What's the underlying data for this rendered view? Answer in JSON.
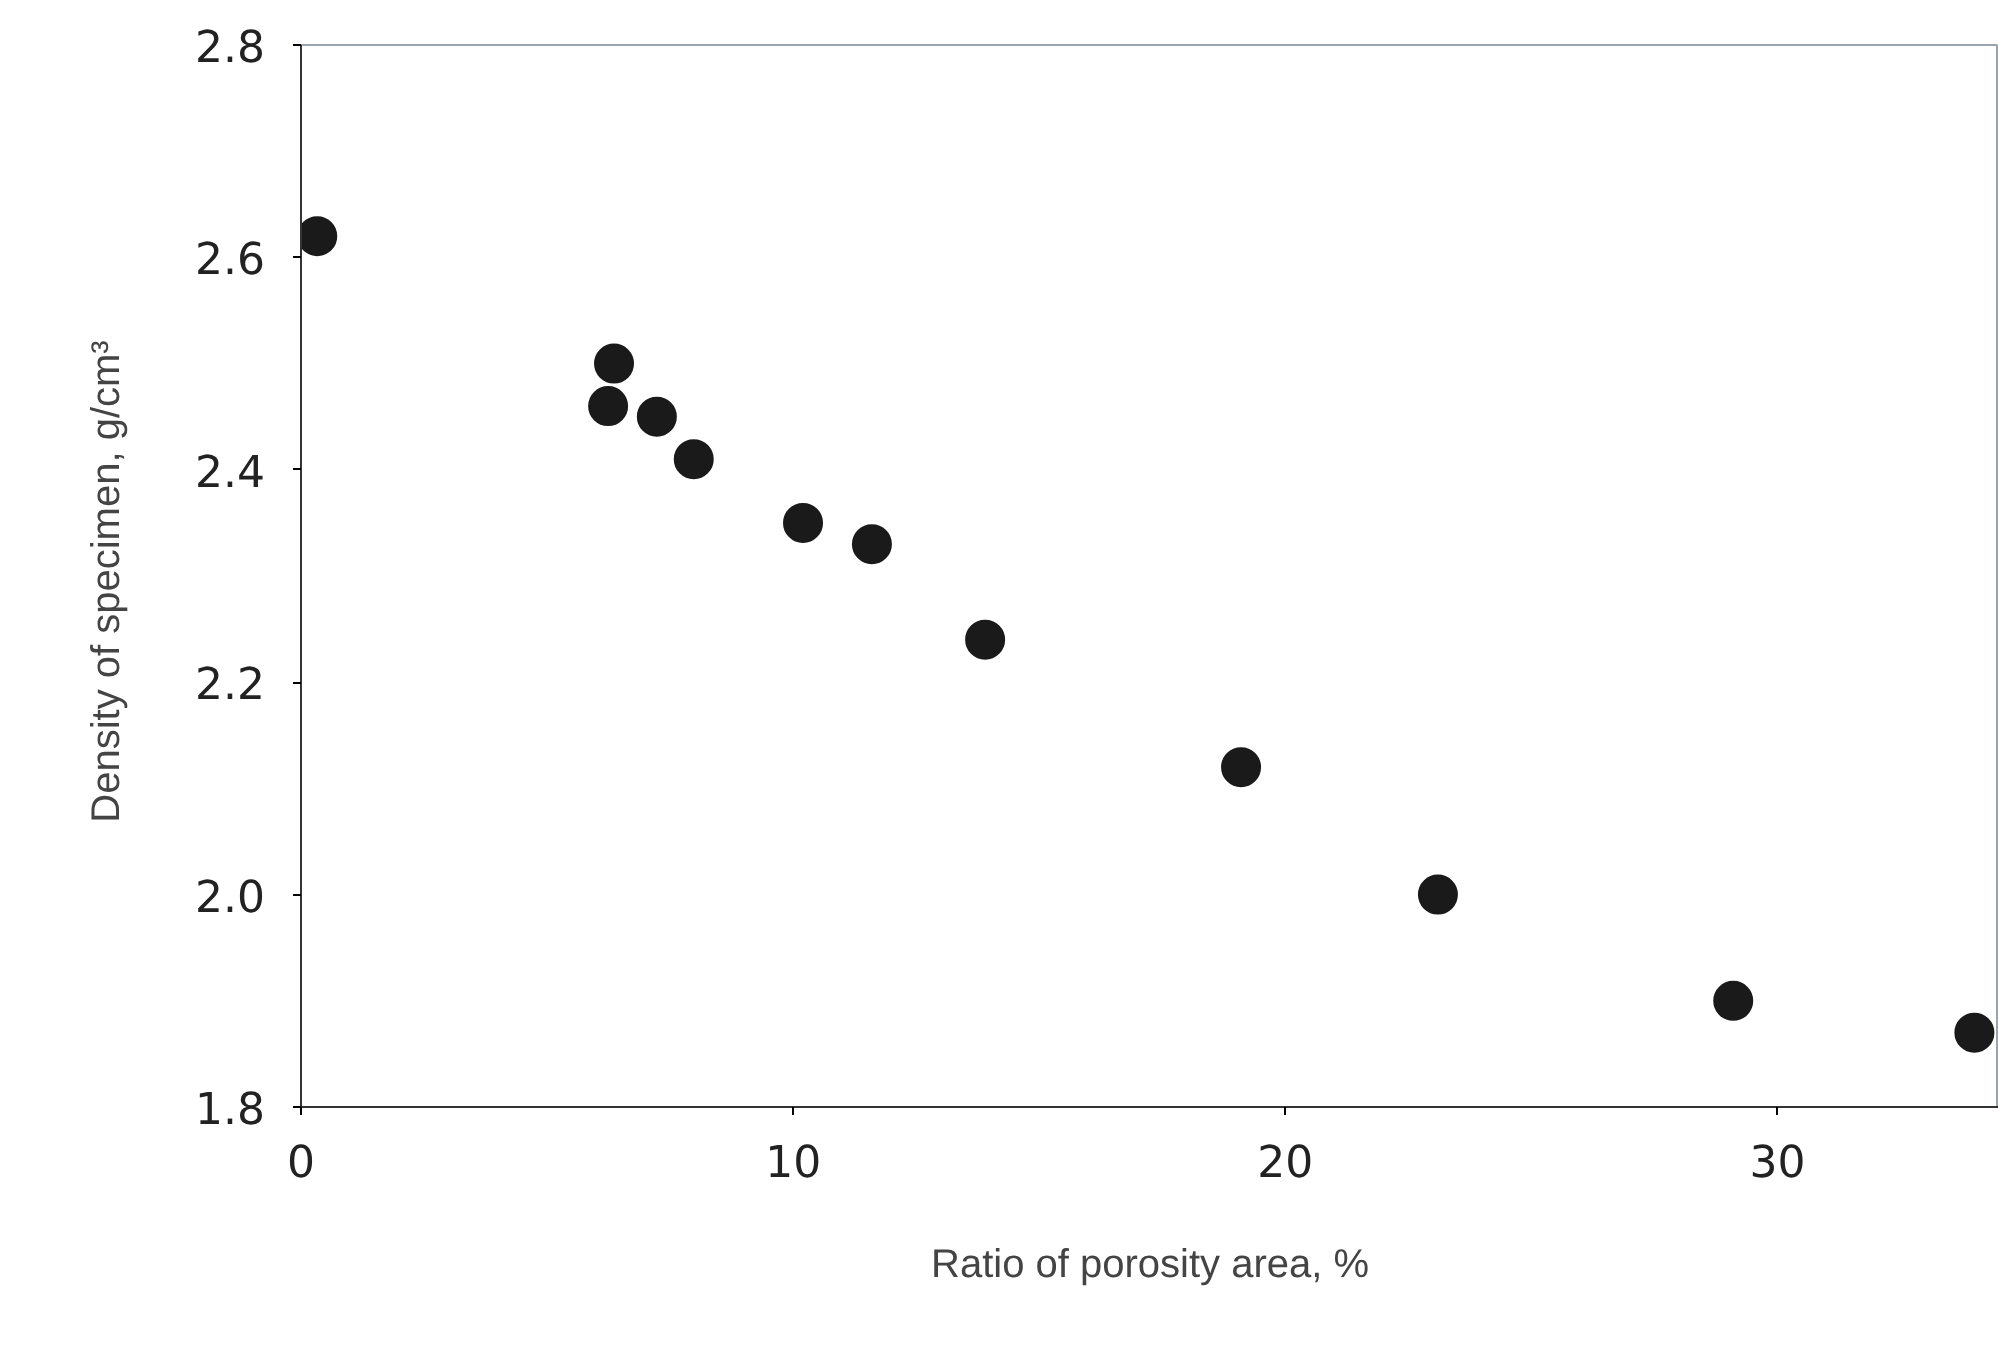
{
  "chart_data": {
    "type": "scatter",
    "xlabel": "Ratio of porosity area, %",
    "ylabel": "Density of specimen,  g/cm³",
    "x": [
      0.33,
      6.24,
      6.36,
      7.23,
      7.98,
      10.2,
      11.6,
      13.9,
      19.1,
      23.1,
      29.1,
      34.0
    ],
    "values": [
      2.62,
      2.46,
      2.5,
      2.45,
      2.41,
      2.35,
      2.33,
      2.24,
      2.12,
      2.0,
      1.9,
      1.87
    ],
    "color": "#1a1a1a",
    "marker": "circle",
    "xlim": [
      0,
      34.5
    ],
    "ylim": [
      1.8,
      2.8
    ],
    "xticks": [
      0,
      10,
      20,
      30
    ],
    "yticks": [
      1.8,
      {
        "value": 2.0,
        "label": "2.0"
      },
      2.2,
      2.4,
      2.6,
      2.8
    ],
    "grid": false
  }
}
